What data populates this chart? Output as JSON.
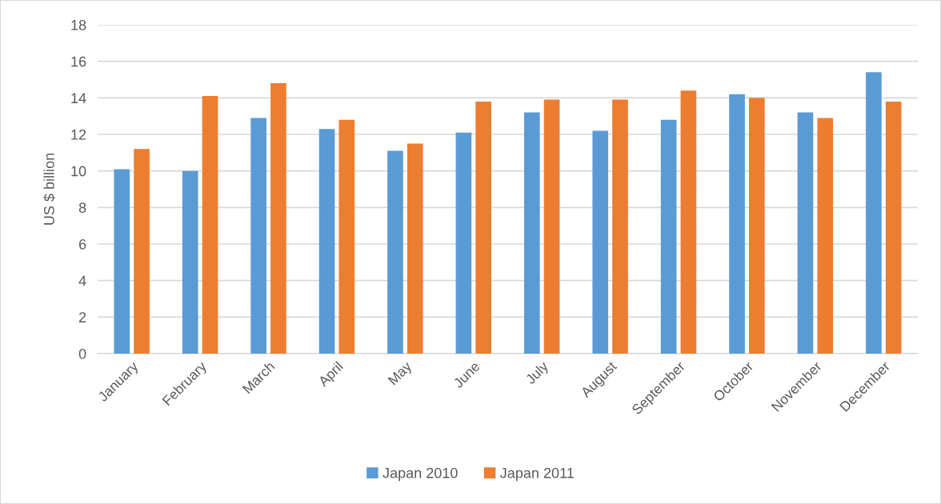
{
  "chart_data": {
    "type": "bar",
    "ylabel": "US $ billion",
    "categories": [
      "January",
      "February",
      "March",
      "April",
      "May",
      "June",
      "July",
      "August",
      "September",
      "October",
      "November",
      "December"
    ],
    "series": [
      {
        "name": "Japan 2010",
        "color": "#5b9bd5",
        "values": [
          10.1,
          10.0,
          12.9,
          12.3,
          11.1,
          12.1,
          13.2,
          12.2,
          12.8,
          14.2,
          13.2,
          15.4
        ]
      },
      {
        "name": "Japan 2011",
        "color": "#ed7d31",
        "values": [
          11.2,
          14.1,
          14.8,
          12.8,
          11.5,
          13.8,
          13.9,
          13.9,
          14.4,
          14.0,
          12.9,
          13.8
        ]
      }
    ],
    "ylim": [
      0,
      18
    ],
    "yticks": [
      0,
      2,
      4,
      6,
      8,
      10,
      12,
      14,
      16,
      18
    ],
    "grid": "y",
    "legend": "bottom"
  }
}
